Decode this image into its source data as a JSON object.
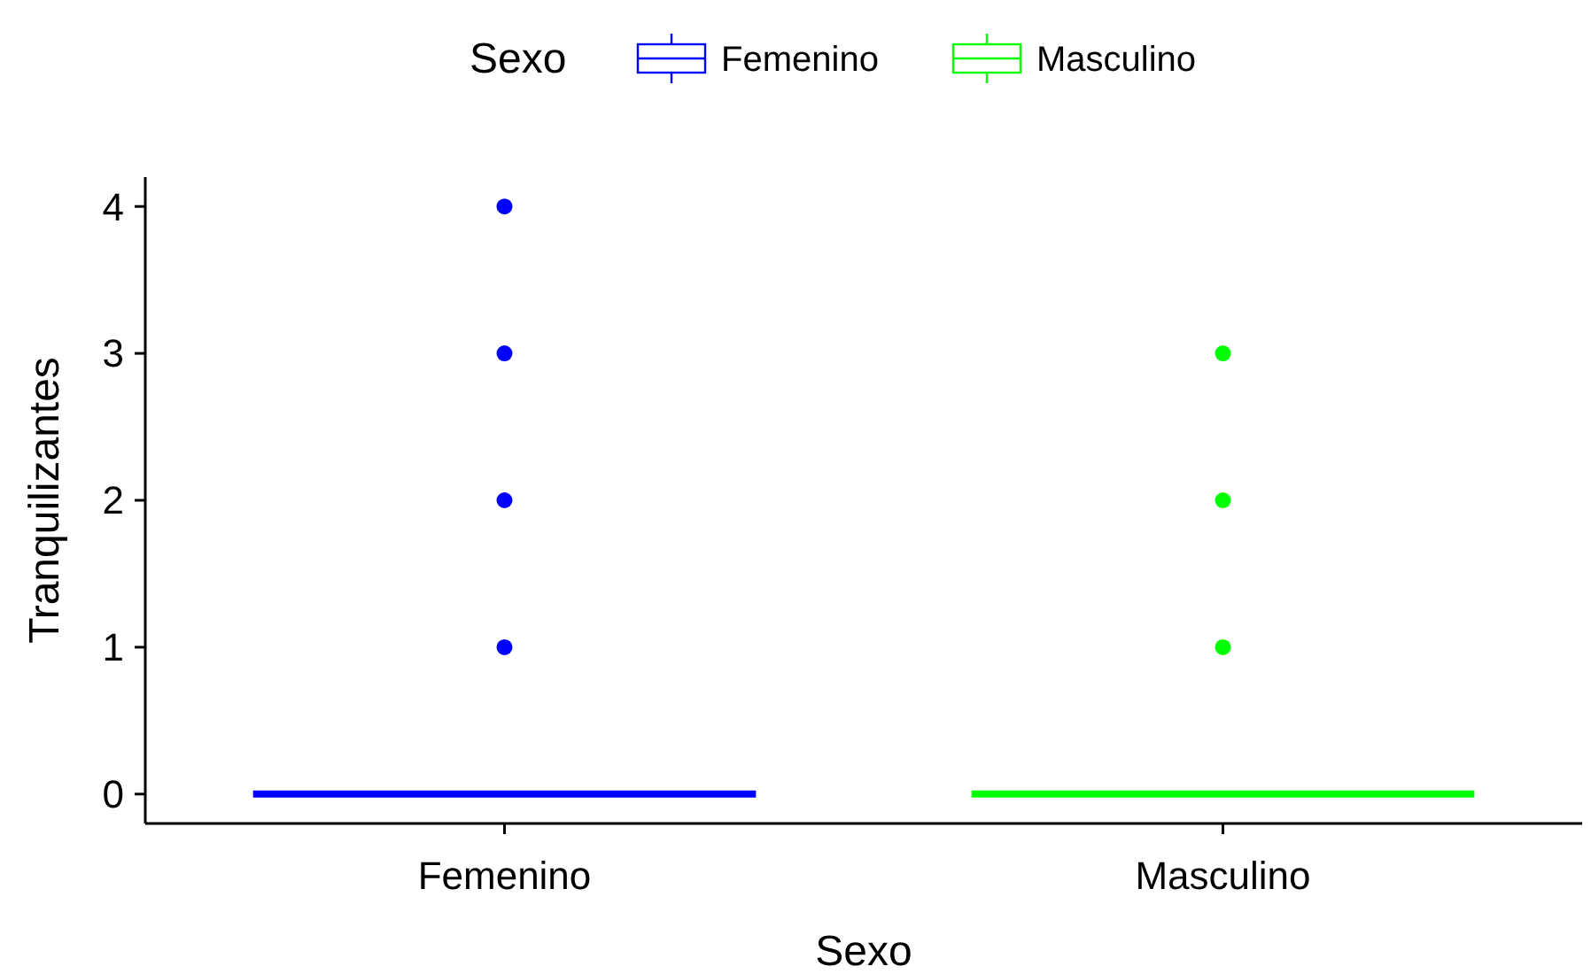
{
  "chart_data": {
    "type": "box",
    "xlabel": "Sexo",
    "ylabel": "Tranquilizantes",
    "legend_title": "Sexo",
    "legend": "top",
    "grid": false,
    "categories": [
      "Femenino",
      "Masculino"
    ],
    "ylim": [
      -0.2,
      4.2
    ],
    "yticks": [
      0,
      1,
      2,
      3,
      4
    ],
    "series": [
      {
        "name": "Femenino",
        "color": "#0000ff",
        "boxes": [
          {
            "low": 0,
            "q1": 0,
            "median": 0,
            "q3": 0,
            "high": 0,
            "outliers": [
              1,
              2,
              3,
              4
            ]
          },
          null
        ]
      },
      {
        "name": "Masculino",
        "color": "#00ff00",
        "boxes": [
          null,
          {
            "low": 0,
            "q1": 0,
            "median": 0,
            "q3": 0,
            "high": 0,
            "outliers": [
              1,
              2,
              3
            ]
          }
        ]
      }
    ]
  }
}
